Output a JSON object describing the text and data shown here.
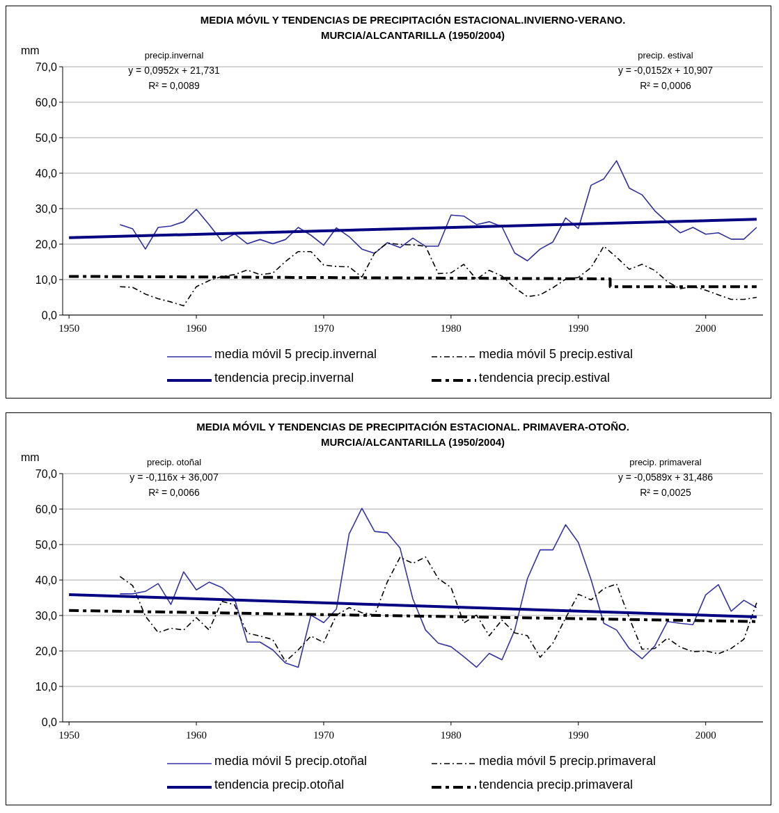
{
  "chart_data": [
    {
      "type": "line",
      "title": "MEDIA MÓVIL Y TENDENCIAS DE PRECIPITACIÓN ESTACIONAL.INVIERNO-VERANO.\nMURCIA/ALCANTARILLA (1950/2004)",
      "ylabel": "mm",
      "xlim": [
        1949.5,
        2004.5
      ],
      "xticks": [
        1950,
        1960,
        1970,
        1980,
        1990,
        2000
      ],
      "ylim": [
        0,
        70
      ],
      "yticks": [
        {
          "value": 0,
          "label": "0,0"
        },
        {
          "value": 10,
          "label": "10,0"
        },
        {
          "value": 20,
          "label": "20,0"
        },
        {
          "value": 30,
          "label": "30,0"
        },
        {
          "value": 40,
          "label": "40,0"
        },
        {
          "value": 50,
          "label": "50,0"
        },
        {
          "value": 60,
          "label": "60,0"
        },
        {
          "value": 70,
          "label": "70,0"
        }
      ],
      "grid": "y",
      "legend": "bottom",
      "marker": "none",
      "annotations": [
        "precip.invernal",
        "y = 0,0952x + 21,731",
        "R² = 0,0089",
        "precip. estival",
        "y = -0,0152x + 10,907",
        "R² = 0,0006"
      ],
      "x": [
        1954,
        1955,
        1956,
        1957,
        1958,
        1959,
        1960,
        1961,
        1962,
        1963,
        1964,
        1965,
        1966,
        1967,
        1968,
        1969,
        1970,
        1971,
        1972,
        1973,
        1974,
        1975,
        1976,
        1977,
        1978,
        1979,
        1980,
        1981,
        1982,
        1983,
        1984,
        1985,
        1986,
        1987,
        1988,
        1989,
        1990,
        1991,
        1992,
        1993,
        1994,
        1995,
        1996,
        1997,
        1998,
        1999,
        2000,
        2001,
        2002,
        2003,
        2004
      ],
      "series": [
        {
          "name": "media móvil 5 precip.invernal",
          "color": "#2e2e9e",
          "line_style": "solid",
          "values": [
            25.5,
            24.3,
            18.6,
            24.7,
            25.1,
            26.3,
            29.8,
            25.5,
            20.9,
            22.9,
            20.1,
            21.3,
            20.1,
            21.3,
            24.7,
            22.5,
            19.7,
            24.6,
            22.1,
            18.6,
            17.4,
            20.4,
            19.0,
            21.7,
            19.4,
            19.4,
            28.2,
            27.9,
            25.5,
            26.3,
            24.9,
            17.5,
            15.3,
            18.6,
            20.6,
            27.4,
            24.4,
            36.6,
            38.4,
            43.5,
            35.8,
            33.9,
            29.4,
            26.1,
            23.2,
            24.7,
            22.8,
            23.2,
            21.4,
            21.4,
            24.7
          ]
        },
        {
          "name": "media móvil 5 precip.estival",
          "color": "#000000",
          "line_style": "dashed",
          "values": [
            8.0,
            7.8,
            5.9,
            4.6,
            3.7,
            2.6,
            8.0,
            9.7,
            10.9,
            11.4,
            12.7,
            11.4,
            11.8,
            15.1,
            17.9,
            17.9,
            14.1,
            13.7,
            13.6,
            10.7,
            17.5,
            20.3,
            19.9,
            19.8,
            19.4,
            11.7,
            11.9,
            14.3,
            10.1,
            12.6,
            11.0,
            7.7,
            5.2,
            5.7,
            7.7,
            10.1,
            10.6,
            13.4,
            19.4,
            16.3,
            12.9,
            14.3,
            12.6,
            9.4,
            7.4,
            8.1,
            7.0,
            5.7,
            4.4,
            4.4,
            5.0
          ]
        },
        {
          "name": "tendencia precip.invernal",
          "color": "#000080",
          "line_style": "solid",
          "x": [
            1950,
            2004
          ],
          "values": [
            21.8,
            27.0
          ]
        },
        {
          "name": "tendencia precip.estival",
          "color": "#000000",
          "line_style": "dashed",
          "x": [
            1950,
            1992.5,
            1992.5,
            2004
          ],
          "values": [
            10.9,
            10.2,
            8.0,
            8.0
          ]
        }
      ]
    },
    {
      "type": "line",
      "title": "MEDIA MÓVIL Y TENDENCIAS DE PRECIPITACIÓN ESTACIONAL. PRIMAVERA-OTOÑO.\nMURCIA/ALCANTARILLA (1950/2004)",
      "ylabel": "mm",
      "xlim": [
        1949.5,
        2004.5
      ],
      "xticks": [
        1950,
        1960,
        1970,
        1980,
        1990,
        2000
      ],
      "ylim": [
        0,
        70
      ],
      "yticks": [
        {
          "value": 0,
          "label": "0,0"
        },
        {
          "value": 10,
          "label": "10,0"
        },
        {
          "value": 20,
          "label": "20,0"
        },
        {
          "value": 30,
          "label": "30,0"
        },
        {
          "value": 40,
          "label": "40,0"
        },
        {
          "value": 50,
          "label": "50,0"
        },
        {
          "value": 60,
          "label": "60,0"
        },
        {
          "value": 70,
          "label": "70,0"
        }
      ],
      "grid": "y",
      "legend": "bottom",
      "marker": "none",
      "annotations": [
        "precip. otoñal",
        "y = -0,116x + 36,007",
        "R² = 0,0066",
        "precip. primaveral",
        "y = -0,0589x + 31,486",
        "R² = 0,0025"
      ],
      "x": [
        1954,
        1955,
        1956,
        1957,
        1958,
        1959,
        1960,
        1961,
        1962,
        1963,
        1964,
        1965,
        1966,
        1967,
        1968,
        1969,
        1970,
        1971,
        1972,
        1973,
        1974,
        1975,
        1976,
        1977,
        1978,
        1979,
        1980,
        1981,
        1982,
        1983,
        1984,
        1985,
        1986,
        1987,
        1988,
        1989,
        1990,
        1991,
        1992,
        1993,
        1994,
        1995,
        1996,
        1997,
        1998,
        1999,
        2000,
        2001,
        2002,
        2003,
        2004
      ],
      "series": [
        {
          "name": "media móvil 5 precip.otoñal",
          "color": "#3333a6",
          "line_style": "solid",
          "values": [
            36.1,
            36.1,
            36.8,
            39.0,
            33.1,
            42.3,
            37.2,
            39.4,
            37.9,
            34.7,
            22.5,
            22.5,
            20.3,
            16.6,
            15.4,
            30.1,
            28.0,
            31.8,
            53.0,
            60.2,
            53.7,
            53.3,
            49.0,
            34.7,
            25.9,
            22.2,
            21.2,
            18.4,
            15.4,
            19.3,
            17.5,
            25.8,
            40.4,
            48.5,
            48.5,
            55.6,
            50.6,
            40.1,
            27.8,
            25.9,
            20.7,
            17.8,
            21.4,
            28.3,
            27.8,
            27.4,
            35.8,
            38.7,
            31.2,
            34.3,
            32.2
          ]
        },
        {
          "name": "media móvil 5 precip.primaveral",
          "color": "#000000",
          "line_style": "dashed",
          "values": [
            41.0,
            38.4,
            29.8,
            25.2,
            26.4,
            25.9,
            29.4,
            25.9,
            34.0,
            33.0,
            25.0,
            24.2,
            23.2,
            17.0,
            20.3,
            24.2,
            22.4,
            30.1,
            32.2,
            30.8,
            30.1,
            39.5,
            46.4,
            44.7,
            46.5,
            40.4,
            37.9,
            27.9,
            30.1,
            24.3,
            28.7,
            25.1,
            24.3,
            18.2,
            22.2,
            29.3,
            36.0,
            34.4,
            37.6,
            38.9,
            29.3,
            20.5,
            20.7,
            23.6,
            21.1,
            19.8,
            20.0,
            19.2,
            20.7,
            23.3,
            33.6
          ]
        },
        {
          "name": "tendencia precip.otoñal",
          "color": "#000080",
          "line_style": "solid",
          "x": [
            1950,
            2004
          ],
          "values": [
            35.9,
            29.6
          ]
        },
        {
          "name": "tendencia precip.primaveral",
          "color": "#000000",
          "line_style": "dashed",
          "x": [
            1950,
            2004
          ],
          "values": [
            31.4,
            28.3
          ]
        }
      ]
    }
  ]
}
